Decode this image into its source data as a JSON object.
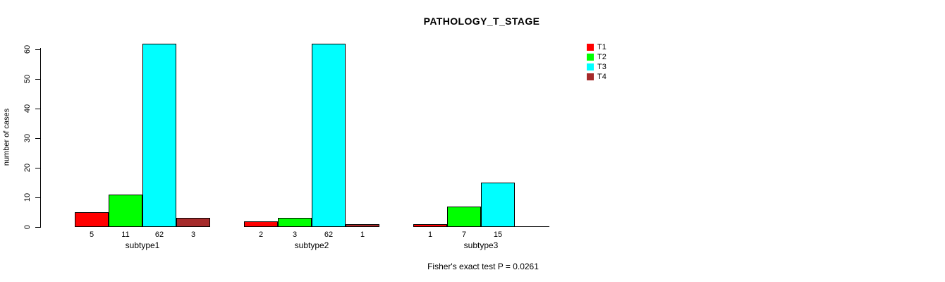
{
  "title": "PATHOLOGY_T_STAGE",
  "chart_data": {
    "type": "bar",
    "title": "PATHOLOGY_T_STAGE",
    "xlabel": "",
    "ylabel": "number of cases",
    "categories": [
      "subtype1",
      "subtype2",
      "subtype3"
    ],
    "series": [
      {
        "name": "T1",
        "color": "#ff0000",
        "values": [
          5,
          2,
          1
        ]
      },
      {
        "name": "T2",
        "color": "#00ff00",
        "values": [
          11,
          3,
          7
        ]
      },
      {
        "name": "T3",
        "color": "#00ffff",
        "values": [
          62,
          62,
          15
        ]
      },
      {
        "name": "T4",
        "color": "#a52a2a",
        "values": [
          3,
          1,
          0
        ]
      }
    ],
    "bar_count_labels": [
      [
        "5",
        "11",
        "62",
        "3"
      ],
      [
        "2",
        "3",
        "62",
        "1"
      ],
      [
        "1",
        "7",
        "15",
        ""
      ]
    ],
    "yticks": [
      0,
      10,
      20,
      30,
      40,
      50,
      60
    ],
    "ylim": [
      0,
      62
    ],
    "grid": false,
    "legend_position": "right",
    "annotation": "Fisher's exact test P = 0.0261"
  }
}
